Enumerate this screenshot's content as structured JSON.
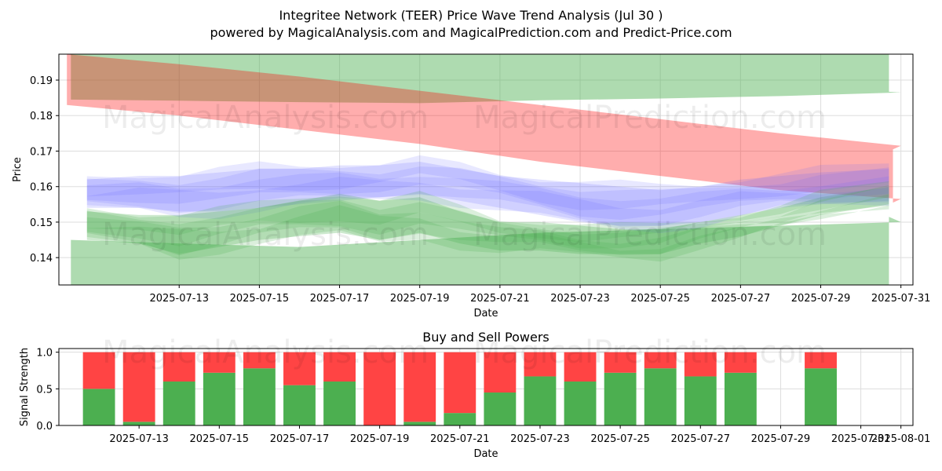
{
  "title": "Integritee Network (TEER) Price Wave Trend Analysis (Jul 30 )",
  "subtitle": "powered by MagicalAnalysis.com and MagicalPrediction.com and Predict-Price.com",
  "watermarks": [
    "MagicalAnalysis.com",
    "MagicalPrediction.com",
    "MagicalAnalysis.com",
    "MagicalPrediction.com",
    "MagicalAnalysis.com",
    "MagicalPrediction.com"
  ],
  "chart_data": [
    {
      "type": "area",
      "title": "",
      "xlabel": "Date",
      "ylabel": "Price",
      "xlim": [
        "2025-07-10",
        "2025-07-31.3"
      ],
      "ylim": [
        0.1323,
        0.1973
      ],
      "yticks": [
        0.14,
        0.15,
        0.16,
        0.17,
        0.18,
        0.19
      ],
      "ytick_labels": [
        "0.14",
        "0.15",
        "0.16",
        "0.17",
        "0.18",
        "0.19"
      ],
      "xticks": [
        "2025-07-13",
        "2025-07-15",
        "2025-07-17",
        "2025-07-19",
        "2025-07-21",
        "2025-07-23",
        "2025-07-25",
        "2025-07-27",
        "2025-07-29",
        "2025-07-31"
      ],
      "grid": true,
      "bands": [
        {
          "name": "green-upper",
          "color": "#4caf50",
          "opacity": 0.45,
          "x": [
            0.3,
            3,
            6,
            9,
            12,
            15,
            18,
            21,
            20.7
          ],
          "upper": [
            0.1973,
            0.1973,
            0.1973,
            0.1973,
            0.1973,
            0.1973,
            0.1973,
            0.1973,
            0.1973
          ],
          "lower": [
            0.1845,
            0.1842,
            0.1838,
            0.1835,
            0.1843,
            0.1848,
            0.1855,
            0.1865,
            0.1867
          ]
        },
        {
          "name": "green-lower",
          "color": "#4caf50",
          "opacity": 0.45,
          "x": [
            0.3,
            3,
            6,
            9,
            12,
            15,
            18,
            21,
            20.7
          ],
          "upper": [
            0.145,
            0.144,
            0.143,
            0.145,
            0.147,
            0.148,
            0.149,
            0.15,
            0.1515
          ],
          "lower": [
            0.1323,
            0.1323,
            0.1323,
            0.1323,
            0.1323,
            0.1323,
            0.1323,
            0.1323,
            0.1323
          ]
        },
        {
          "name": "red-trend",
          "color": "#ff0000",
          "opacity": 0.32,
          "x": [
            0.2,
            3,
            6,
            9,
            12,
            15,
            18,
            21,
            20.8
          ],
          "upper": [
            0.1973,
            0.1945,
            0.191,
            0.187,
            0.183,
            0.179,
            0.175,
            0.1715,
            0.1705
          ],
          "lower": [
            0.183,
            0.18,
            0.176,
            0.172,
            0.167,
            0.163,
            0.159,
            0.1565,
            0.1555
          ]
        },
        {
          "name": "blue-waves",
          "color": "#6666ff",
          "opacity": 0.18,
          "x": [
            0.7,
            2,
            3,
            4,
            5,
            6,
            7,
            8,
            9,
            10,
            11,
            12,
            13,
            14,
            15,
            16,
            17,
            18,
            19,
            20.7
          ],
          "upper": [
            0.162,
            0.163,
            0.163,
            0.164,
            0.165,
            0.165,
            0.166,
            0.166,
            0.167,
            0.165,
            0.163,
            0.162,
            0.161,
            0.16,
            0.159,
            0.16,
            0.162,
            0.163,
            0.164,
            0.165
          ],
          "lower": [
            0.154,
            0.154,
            0.153,
            0.153,
            0.154,
            0.155,
            0.156,
            0.157,
            0.158,
            0.156,
            0.154,
            0.152,
            0.15,
            0.149,
            0.149,
            0.15,
            0.152,
            0.154,
            0.155,
            0.156
          ]
        },
        {
          "name": "green-waves",
          "color": "#4caf50",
          "opacity": 0.28,
          "x": [
            0.7,
            2,
            3,
            4,
            5,
            6,
            7,
            8,
            9,
            10,
            11,
            12,
            13,
            14,
            15,
            16,
            17,
            18,
            19,
            20.7
          ],
          "upper": [
            0.153,
            0.152,
            0.152,
            0.153,
            0.154,
            0.156,
            0.158,
            0.156,
            0.157,
            0.153,
            0.15,
            0.15,
            0.149,
            0.148,
            0.148,
            0.15,
            0.152,
            0.154,
            0.157,
            0.16
          ],
          "lower": [
            0.145,
            0.144,
            0.141,
            0.143,
            0.145,
            0.146,
            0.147,
            0.145,
            0.147,
            0.144,
            0.142,
            0.142,
            0.141,
            0.141,
            0.141,
            0.144,
            0.146,
            0.149,
            0.152,
            0.155
          ]
        }
      ]
    },
    {
      "type": "bar",
      "stacked": true,
      "title": "Buy and Sell Powers",
      "xlabel": "Date",
      "ylabel": "Signal Strength",
      "ylim": [
        0,
        1.05
      ],
      "yticks": [
        0.0,
        0.5,
        1.0
      ],
      "ytick_labels": [
        "0.0",
        "0.5",
        "1.0"
      ],
      "xlim": [
        "2025-07-11.0",
        "2025-08-01.3"
      ],
      "xticks": [
        "2025-07-13",
        "2025-07-15",
        "2025-07-17",
        "2025-07-19",
        "2025-07-21",
        "2025-07-23",
        "2025-07-25",
        "2025-07-27",
        "2025-07-29",
        "2025-07-31",
        "2025-08-01"
      ],
      "categories": [
        "2025-07-12",
        "2025-07-13",
        "2025-07-14",
        "2025-07-15",
        "2025-07-16",
        "2025-07-17",
        "2025-07-18",
        "2025-07-19",
        "2025-07-20",
        "2025-07-21",
        "2025-07-22",
        "2025-07-23",
        "2025-07-24",
        "2025-07-25",
        "2025-07-26",
        "2025-07-27",
        "2025-07-28",
        "2025-07-30"
      ],
      "series": [
        {
          "name": "Buy",
          "color": "#4caf50",
          "values": [
            0.5,
            0.05,
            0.6,
            0.72,
            0.78,
            0.55,
            0.6,
            0.0,
            0.05,
            0.17,
            0.45,
            0.67,
            0.6,
            0.72,
            0.78,
            0.67,
            0.72,
            0.78
          ]
        },
        {
          "name": "Sell",
          "color": "#ff4444",
          "values": [
            0.5,
            0.95,
            0.4,
            0.28,
            0.22,
            0.45,
            0.4,
            1.0,
            0.95,
            0.83,
            0.55,
            0.33,
            0.4,
            0.28,
            0.22,
            0.33,
            0.28,
            0.22
          ]
        }
      ]
    }
  ]
}
